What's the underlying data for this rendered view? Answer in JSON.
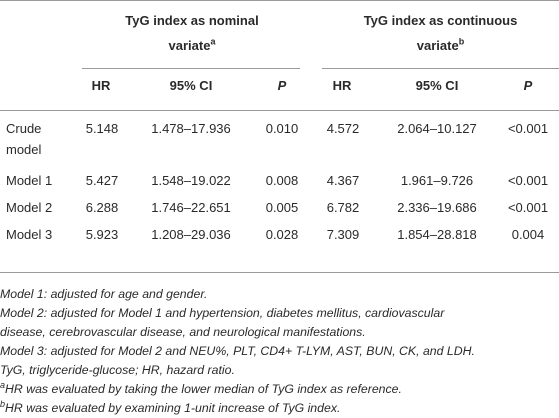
{
  "groups": [
    {
      "title": "TyG index as nominal",
      "title2": "variate",
      "sup": "a"
    },
    {
      "title": "TyG index as continuous",
      "title2": "variate",
      "sup": "b"
    }
  ],
  "columns": [
    "HR",
    "95% CI",
    "P",
    "HR",
    "95% CI",
    "P"
  ],
  "rows": [
    {
      "label1": "Crude",
      "label2": "model",
      "cells": [
        "5.148",
        "1.478–17.936",
        "0.010",
        "4.572",
        "2.064–10.127",
        "<0.001"
      ]
    },
    {
      "label1": "Model 1",
      "cells": [
        "5.427",
        "1.548–19.022",
        "0.008",
        "4.367",
        "1.961–9.726",
        "<0.001"
      ]
    },
    {
      "label1": "Model 2",
      "cells": [
        "6.288",
        "1.746–22.651",
        "0.005",
        "6.782",
        "2.336–19.686",
        "<0.001"
      ]
    },
    {
      "label1": "Model 3",
      "cells": [
        "5.923",
        "1.208–29.036",
        "0.028",
        "7.309",
        "1.854–28.818",
        "0.004"
      ]
    }
  ],
  "notes": {
    "m1": "Model 1: adjusted for age and gender.",
    "m2a": "Model 2: adjusted for Model 1 and hypertension, diabetes mellitus, cardiovascular",
    "m2b": "disease, cerebrovascular disease, and neurological manifestations.",
    "m3": "Model 3: adjusted for Model 2 and NEU%, PLT, CD4+ T-LYM, AST, BUN, CK, and LDH.",
    "abbr": "TyG, triglyceride-glucose; HR, hazard ratio.",
    "a_sup": "a",
    "a": "HR was evaluated by taking the lower median of TyG index as reference.",
    "b_sup": "b",
    "b": "HR was evaluated by examining 1-unit increase of TyG index."
  }
}
